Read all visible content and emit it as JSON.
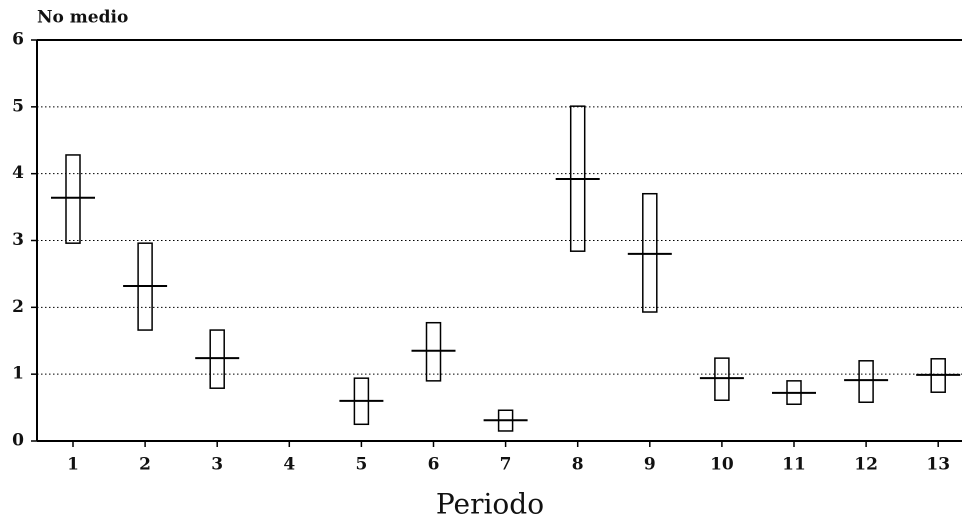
{
  "chart_data": {
    "type": "range",
    "title": "No medio",
    "x_label": "Periodo",
    "categories": [
      "1",
      "2",
      "3",
      "4",
      "5",
      "6",
      "7",
      "8",
      "9",
      "10",
      "11",
      "12",
      "13"
    ],
    "lows": [
      2.96,
      1.66,
      0.79,
      null,
      0.25,
      0.9,
      0.15,
      2.84,
      1.93,
      0.61,
      0.55,
      0.58,
      0.73
    ],
    "highs": [
      4.28,
      2.96,
      1.66,
      null,
      0.94,
      1.77,
      0.46,
      5.01,
      3.7,
      1.24,
      0.9,
      1.2,
      1.23
    ],
    "means": [
      3.64,
      2.32,
      1.24,
      null,
      0.6,
      1.35,
      0.31,
      3.92,
      2.8,
      0.94,
      0.72,
      0.91,
      0.99
    ],
    "color": "#000000",
    "ylim": [
      0,
      6
    ],
    "yticks": [
      0,
      1,
      2,
      3,
      4,
      5,
      6
    ],
    "grid": true
  }
}
